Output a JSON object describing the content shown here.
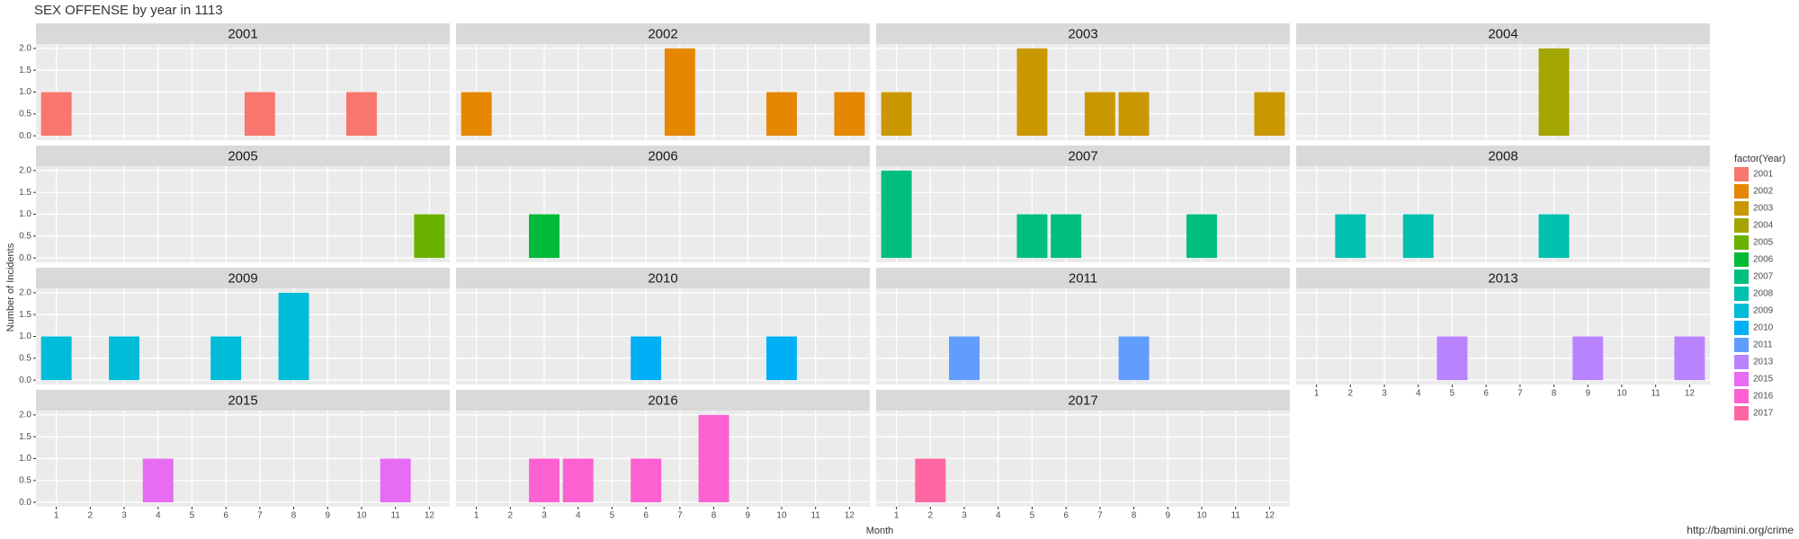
{
  "chart_data": {
    "type": "bar",
    "title": "SEX OFFENSE by year in 1113",
    "x_label": "Month",
    "y_label": "Number of Incidents",
    "caption": "http://bamini.org/crime",
    "legend_title": "factor(Year)",
    "xlim": [
      0.4,
      12.6
    ],
    "xticks": [
      1,
      2,
      3,
      4,
      5,
      6,
      7,
      8,
      9,
      10,
      11,
      12
    ],
    "ylim": [
      -0.1,
      2.1
    ],
    "yticks": [
      {
        "value": 0,
        "label": "0.0"
      },
      {
        "value": 0.5,
        "label": "0.5"
      },
      {
        "value": 1,
        "label": "1.0"
      },
      {
        "value": 1.5,
        "label": "1.5"
      },
      {
        "value": 2,
        "label": "2.0"
      }
    ],
    "grid": true,
    "facets": [
      {
        "name": "2001",
        "color": "#F8766D",
        "x": [
          1,
          7,
          10
        ],
        "values": [
          1,
          1,
          1
        ]
      },
      {
        "name": "2002",
        "color": "#E58700",
        "x": [
          1,
          7,
          10,
          12
        ],
        "values": [
          1,
          2,
          1,
          1
        ]
      },
      {
        "name": "2003",
        "color": "#C99800",
        "x": [
          1,
          5,
          7,
          8,
          12
        ],
        "values": [
          1,
          2,
          1,
          1,
          1
        ]
      },
      {
        "name": "2004",
        "color": "#A3A500",
        "x": [
          8
        ],
        "values": [
          2
        ]
      },
      {
        "name": "2005",
        "color": "#6BB100",
        "x": [
          12
        ],
        "values": [
          1
        ]
      },
      {
        "name": "2006",
        "color": "#00BA38",
        "x": [
          3
        ],
        "values": [
          1
        ]
      },
      {
        "name": "2007",
        "color": "#00BF7D",
        "x": [
          1,
          5,
          6,
          10
        ],
        "values": [
          2,
          1,
          1,
          1
        ]
      },
      {
        "name": "2008",
        "color": "#00C0AF",
        "x": [
          2,
          4,
          8
        ],
        "values": [
          1,
          1,
          1
        ]
      },
      {
        "name": "2009",
        "color": "#00BCD8",
        "x": [
          1,
          3,
          6,
          8
        ],
        "values": [
          1,
          1,
          1,
          2
        ]
      },
      {
        "name": "2010",
        "color": "#00B0F6",
        "x": [
          6,
          10
        ],
        "values": [
          1,
          1
        ]
      },
      {
        "name": "2011",
        "color": "#619CFF",
        "x": [
          3,
          8
        ],
        "values": [
          1,
          1
        ]
      },
      {
        "name": "2013",
        "color": "#B983FF",
        "x": [
          5,
          9,
          12
        ],
        "values": [
          1,
          1,
          1
        ]
      },
      {
        "name": "2015",
        "color": "#E76BF3",
        "x": [
          4,
          11
        ],
        "values": [
          1,
          1
        ]
      },
      {
        "name": "2016",
        "color": "#FD61D1",
        "x": [
          3,
          4,
          6,
          8
        ],
        "values": [
          1,
          1,
          1,
          2
        ]
      },
      {
        "name": "2017",
        "color": "#FF67A4",
        "x": [
          2
        ],
        "values": [
          1
        ]
      }
    ]
  }
}
